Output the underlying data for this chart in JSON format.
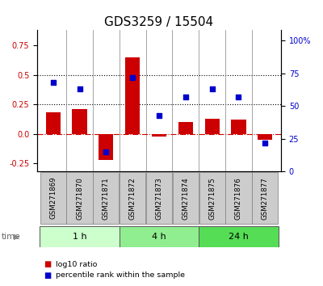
{
  "title": "GDS3259 / 15504",
  "samples": [
    "GSM271869",
    "GSM271870",
    "GSM271871",
    "GSM271872",
    "GSM271873",
    "GSM271874",
    "GSM271875",
    "GSM271876",
    "GSM271877"
  ],
  "log10_ratio": [
    0.18,
    0.21,
    -0.22,
    0.65,
    -0.02,
    0.1,
    0.13,
    0.12,
    -0.05
  ],
  "percentile_rank": [
    68,
    63,
    15,
    72,
    43,
    57,
    63,
    57,
    22
  ],
  "groups": [
    {
      "label": "1 h",
      "samples": [
        0,
        1,
        2
      ],
      "color": "#ccffcc"
    },
    {
      "label": "4 h",
      "samples": [
        3,
        4,
        5
      ],
      "color": "#90ee90"
    },
    {
      "label": "24 h",
      "samples": [
        6,
        7,
        8
      ],
      "color": "#55dd55"
    }
  ],
  "ylim_left": [
    -0.32,
    0.88
  ],
  "ylim_right": [
    0,
    108
  ],
  "yticks_left": [
    -0.25,
    0.0,
    0.25,
    0.5,
    0.75
  ],
  "yticks_right": [
    0,
    25,
    50,
    75,
    100
  ],
  "bar_color": "#cc0000",
  "scatter_color": "#0000cc",
  "hline_color": "#cc0000",
  "dotted_line_color": "#000000",
  "background_color": "#ffffff",
  "title_fontsize": 11,
  "tick_fontsize": 7,
  "bar_width": 0.55
}
